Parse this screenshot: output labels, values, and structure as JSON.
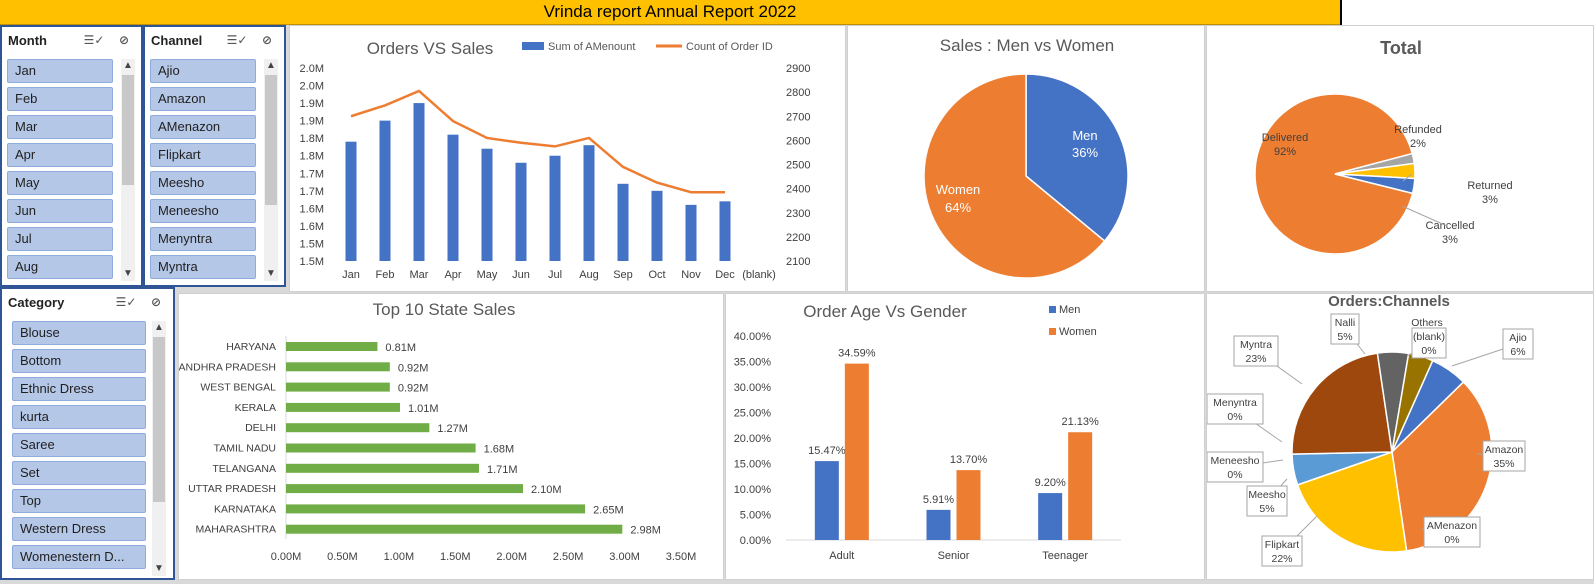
{
  "header": {
    "title": "Vrinda report Annual Report 2022"
  },
  "slicers": {
    "month": {
      "title": "Month",
      "items": [
        "Jan",
        "Feb",
        "Mar",
        "Apr",
        "May",
        "Jun",
        "Jul",
        "Aug"
      ]
    },
    "channel": {
      "title": "Channel",
      "items": [
        "Ajio",
        "Amazon",
        "AMenazon",
        "Flipkart",
        "Meesho",
        "Meneesho",
        "Menyntra",
        "Myntra"
      ]
    },
    "category": {
      "title": "Category",
      "items": [
        "Blouse",
        "Bottom",
        "Ethnic Dress",
        "kurta",
        "Saree",
        "Set",
        "Top",
        "Western Dress",
        "Womenestern D..."
      ]
    }
  },
  "colors": {
    "blue": "#4472c4",
    "orange": "#ed7d31",
    "green": "#70ad47",
    "gold": "#ffc000",
    "brown": "#9e480e",
    "gray": "#636363",
    "olive": "#997300",
    "lightblue": "#5b9bd5"
  },
  "chart_data": [
    {
      "id": "orders_vs_sales",
      "type": "bar",
      "title": "Orders VS Sales",
      "categories": [
        "Jan",
        "Feb",
        "Mar",
        "Apr",
        "May",
        "Jun",
        "Jul",
        "Aug",
        "Sep",
        "Oct",
        "Nov",
        "Dec",
        "(blank)"
      ],
      "series": [
        {
          "name": "Sum of AMenount",
          "kind": "bar",
          "axis": "left",
          "values": [
            1.84,
            1.9,
            1.95,
            1.86,
            1.82,
            1.78,
            1.8,
            1.83,
            1.72,
            1.7,
            1.66,
            1.67,
            null
          ]
        },
        {
          "name": "Count of Order ID",
          "kind": "line",
          "axis": "right",
          "values": [
            2700,
            2745,
            2805,
            2680,
            2610,
            2590,
            2575,
            2610,
            2490,
            2425,
            2385,
            2385,
            null
          ]
        }
      ],
      "yleft": {
        "ticks": [
          "2.0M",
          "2.0M",
          "1.9M",
          "1.9M",
          "1.8M",
          "1.8M",
          "1.7M",
          "1.7M",
          "1.6M",
          "1.6M",
          "1.5M",
          "1.5M"
        ],
        "ylim": [
          1.5,
          2.05
        ]
      },
      "yright": {
        "ticks": [
          "2900",
          "2800",
          "2700",
          "2600",
          "2500",
          "2400",
          "2300",
          "2200",
          "2100"
        ],
        "ylim": [
          2100,
          2900
        ]
      },
      "legend": "top-right"
    },
    {
      "id": "sales_men_women",
      "type": "pie",
      "title": "Sales : Men vs Women",
      "slices": [
        {
          "label": "Men",
          "value": 36,
          "text": "36%",
          "color": "#4472c4"
        },
        {
          "label": "Women",
          "value": 64,
          "text": "64%",
          "color": "#ed7d31"
        }
      ]
    },
    {
      "id": "total_status",
      "type": "pie",
      "title": "Total",
      "slices": [
        {
          "label": "Delivered",
          "value": 92,
          "text": "92%",
          "color": "#ed7d31"
        },
        {
          "label": "Refunded",
          "value": 2,
          "text": "2%",
          "color": "#a5a5a5"
        },
        {
          "label": "Returned",
          "value": 3,
          "text": "3%",
          "color": "#ffc000"
        },
        {
          "label": "Cancelled",
          "value": 3,
          "text": "3%",
          "color": "#4472c4"
        }
      ]
    },
    {
      "id": "top_states",
      "type": "bar",
      "orientation": "horizontal",
      "title": "Top 10 State Sales",
      "categories": [
        "HARYANA",
        "ANDHRA PRADESH",
        "WEST BENGAL",
        "KERALA",
        "DELHI",
        "TAMIL NADU",
        "TELANGANA",
        "UTTAR PRADESH",
        "KARNATAKA",
        "MAHARASHTRA"
      ],
      "values": [
        0.81,
        0.92,
        0.92,
        1.01,
        1.27,
        1.68,
        1.71,
        2.1,
        2.65,
        2.98
      ],
      "labels": [
        "0.81M",
        "0.92M",
        "0.92M",
        "1.01M",
        "1.27M",
        "1.68M",
        "1.71M",
        "2.10M",
        "2.65M",
        "2.98M"
      ],
      "xticks": [
        "0.00M",
        "0.50M",
        "1.00M",
        "1.50M",
        "2.00M",
        "2.50M",
        "3.00M",
        "3.50M"
      ],
      "xlim": [
        0,
        3.5
      ]
    },
    {
      "id": "age_gender",
      "type": "bar",
      "title": "Order Age Vs Gender",
      "categories": [
        "Adult",
        "Senior",
        "Teenager"
      ],
      "series": [
        {
          "name": "Men",
          "values": [
            15.47,
            5.91,
            9.2
          ],
          "labels": [
            "15.47%",
            "5.91%",
            "9.20%"
          ]
        },
        {
          "name": "Women",
          "values": [
            34.59,
            13.7,
            21.13
          ],
          "labels": [
            "34.59%",
            "13.70%",
            "21.13%"
          ]
        }
      ],
      "yticks": [
        "40.00%",
        "35.00%",
        "30.00%",
        "25.00%",
        "20.00%",
        "15.00%",
        "10.00%",
        "5.00%",
        "0.00%"
      ],
      "ylim": [
        0,
        40
      ],
      "legend": "top-right"
    },
    {
      "id": "orders_channels",
      "type": "pie",
      "title": "Orders:Channels",
      "slices": [
        {
          "label": "Ajio",
          "value": 6,
          "text": "6%",
          "color": "#4472c4"
        },
        {
          "label": "Amazon",
          "value": 35,
          "text": "35%",
          "color": "#ed7d31"
        },
        {
          "label": "AMenazon",
          "value": 0,
          "text": "0%",
          "color": "#a5a5a5"
        },
        {
          "label": "Flipkart",
          "value": 22,
          "text": "22%",
          "color": "#ffc000"
        },
        {
          "label": "Meesho",
          "value": 5,
          "text": "5%",
          "color": "#5b9bd5"
        },
        {
          "label": "Meneesho",
          "value": 0,
          "text": "0%",
          "color": "#70ad47"
        },
        {
          "label": "Menyntra",
          "value": 0,
          "text": "0%",
          "color": "#264478"
        },
        {
          "label": "Myntra",
          "value": 23,
          "text": "23%",
          "color": "#9e480e"
        },
        {
          "label": "Nalli",
          "value": 5,
          "text": "5%",
          "color": "#636363"
        },
        {
          "label": "Others",
          "value": 4,
          "text": "",
          "color": "#997300"
        },
        {
          "label": "(blank)",
          "value": 0,
          "text": "0%",
          "color": "#8faadc"
        }
      ]
    }
  ]
}
